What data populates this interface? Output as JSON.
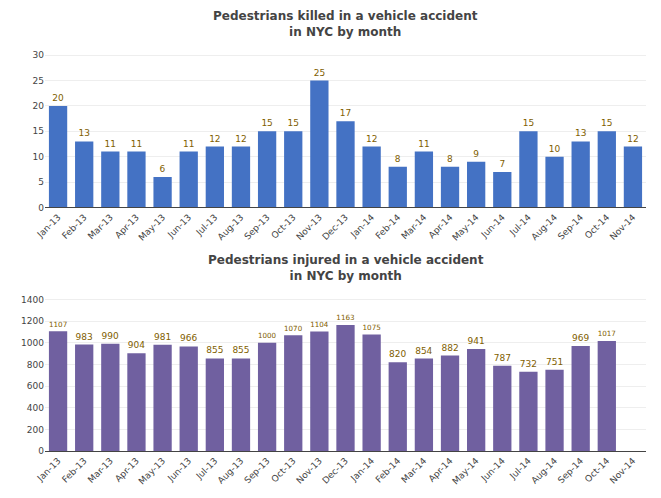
{
  "chart_data": [
    {
      "type": "bar",
      "title": "Pedestrians killed in a vehicle accident\nin NYC by month",
      "categories": [
        "Jan-13",
        "Feb-13",
        "Mar-13",
        "Apr-13",
        "May-13",
        "Jun-13",
        "Jul-13",
        "Aug-13",
        "Sep-13",
        "Oct-13",
        "Nov-13",
        "Dec-13",
        "Jan-14",
        "Feb-14",
        "Mar-14",
        "Apr-14",
        "May-14",
        "Jun-14",
        "Jul-14",
        "Aug-14",
        "Sep-14",
        "Oct-14",
        "Nov-14"
      ],
      "values": [
        20,
        13,
        11,
        11,
        6,
        11,
        12,
        12,
        15,
        15,
        25,
        17,
        12,
        8,
        11,
        8,
        9,
        7,
        15,
        10,
        13,
        15,
        12
      ],
      "color": "#4472C4",
      "ylim": [
        0,
        32
      ],
      "yticks": [
        0,
        5,
        10,
        15,
        20,
        25,
        30
      ],
      "grid": true,
      "data_labels": true
    },
    {
      "type": "bar",
      "title": "Pedestrians injured in a vehicle accident\nin NYC by month",
      "categories": [
        "Jan-13",
        "Feb-13",
        "Mar-13",
        "Apr-13",
        "May-13",
        "Jun-13",
        "Jul-13",
        "Aug-13",
        "Sep-13",
        "Oct-13",
        "Nov-13",
        "Dec-13",
        "Jan-14",
        "Feb-14",
        "Mar-14",
        "Apr-14",
        "May-14",
        "Jun-14",
        "Jul-14",
        "Aug-14",
        "Sep-14",
        "Oct-14",
        "Nov-14"
      ],
      "values": [
        1107,
        983,
        990,
        904,
        981,
        966,
        855,
        855,
        1000,
        1070,
        1104,
        1163,
        1075,
        820,
        854,
        882,
        941,
        787,
        732,
        751,
        969,
        1017,
        0
      ],
      "value_labels": [
        "1107",
        "983",
        "990",
        "904",
        "981",
        "966",
        "855",
        "855",
        "1000",
        "1070",
        "1104",
        "1163",
        "1075",
        "820",
        "854",
        "882",
        "941",
        "787",
        "732",
        "751",
        "969",
        "1017",
        null
      ],
      "color": "#7060A0",
      "ylim": [
        0,
        1500
      ],
      "yticks": [
        0,
        200,
        400,
        600,
        800,
        1000,
        1200,
        1400
      ],
      "grid": true,
      "data_labels": true
    }
  ]
}
